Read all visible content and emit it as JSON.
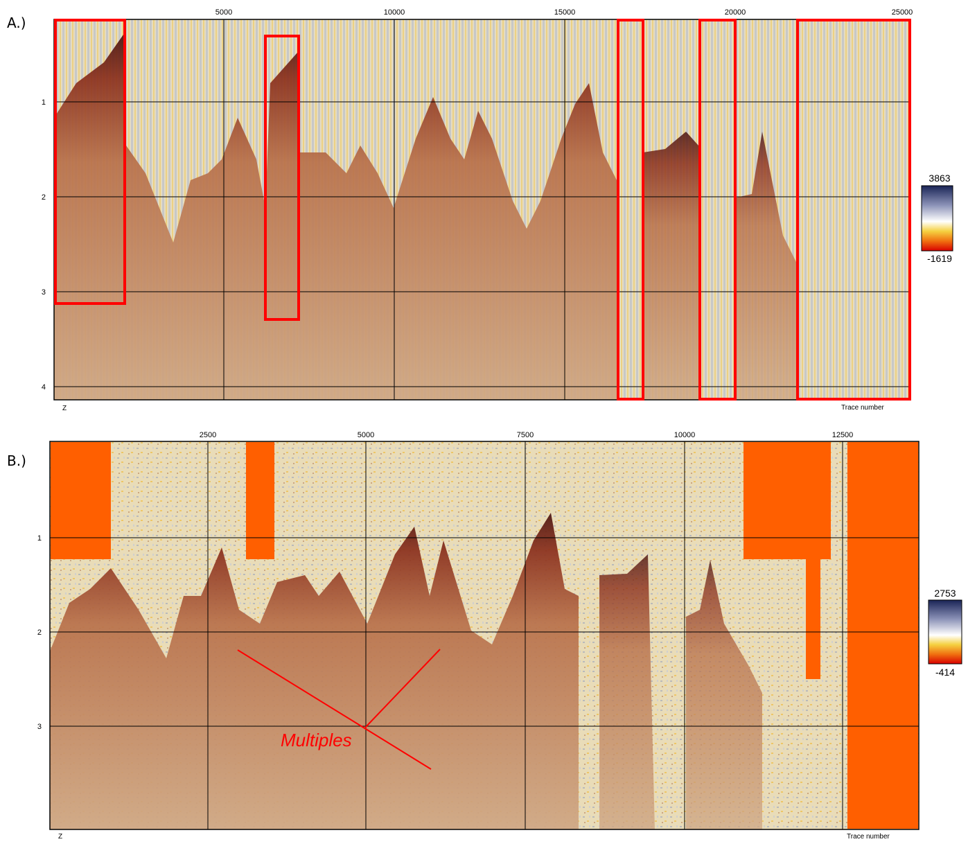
{
  "panels": [
    {
      "label": "A.)",
      "xticks": [
        5000,
        10000,
        15000,
        20000,
        25000
      ],
      "yticks": [
        1,
        2,
        3,
        4
      ],
      "colorbar": {
        "max": 3863,
        "min": -1619
      },
      "x_axis_label": "Trace number",
      "z_axis_label": "Z"
    },
    {
      "label": "B.)",
      "xticks": [
        2500,
        5000,
        7500,
        10000,
        12500
      ],
      "yticks": [
        1,
        2,
        3
      ],
      "colorbar": {
        "max": 2753,
        "min": -414
      },
      "x_axis_label": "Trace number",
      "z_axis_label": "Z",
      "annotation": "Multiples"
    }
  ]
}
